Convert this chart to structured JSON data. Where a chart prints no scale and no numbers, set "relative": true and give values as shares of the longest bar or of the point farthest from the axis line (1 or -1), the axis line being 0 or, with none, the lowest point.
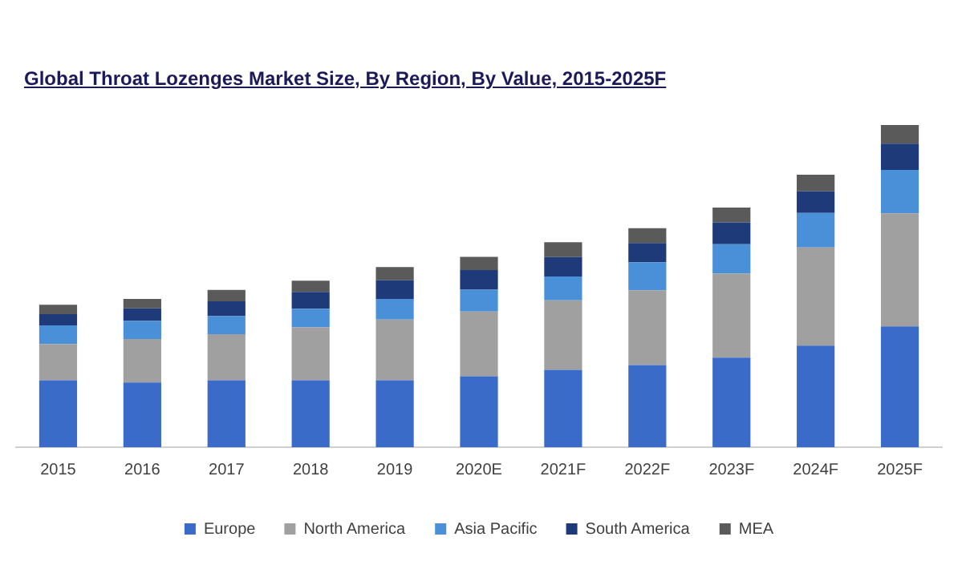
{
  "chart_data": {
    "type": "bar",
    "title": "Global Throat Lozenges Market Size, By Region, By Value, 2015-2025F",
    "categories": [
      "2015",
      "2016",
      "2017",
      "2018",
      "2019",
      "2020E",
      "2021F",
      "2022F",
      "2023F",
      "2024F",
      "2025F"
    ],
    "stacked": true,
    "relative": true,
    "legend": "bottom",
    "grid": false,
    "series": [
      {
        "name": "Europe",
        "color": "#3a6bc8",
        "values": [
          0.208,
          0.201,
          0.208,
          0.208,
          0.208,
          0.22,
          0.24,
          0.255,
          0.278,
          0.315,
          0.375
        ]
      },
      {
        "name": "North America",
        "color": "#a0a0a0",
        "values": [
          0.112,
          0.135,
          0.143,
          0.164,
          0.188,
          0.201,
          0.216,
          0.232,
          0.261,
          0.305,
          0.351
        ]
      },
      {
        "name": "Asia Pacific",
        "color": "#4a90d9",
        "values": [
          0.058,
          0.056,
          0.056,
          0.058,
          0.064,
          0.068,
          0.074,
          0.087,
          0.091,
          0.107,
          0.135
        ]
      },
      {
        "name": "South America",
        "color": "#1f3a78",
        "values": [
          0.035,
          0.039,
          0.046,
          0.052,
          0.058,
          0.061,
          0.06,
          0.06,
          0.068,
          0.067,
          0.081
        ]
      },
      {
        "name": "MEA",
        "color": "#5a5a5a",
        "values": [
          0.029,
          0.029,
          0.035,
          0.035,
          0.041,
          0.041,
          0.046,
          0.046,
          0.046,
          0.052,
          0.058
        ]
      }
    ]
  }
}
